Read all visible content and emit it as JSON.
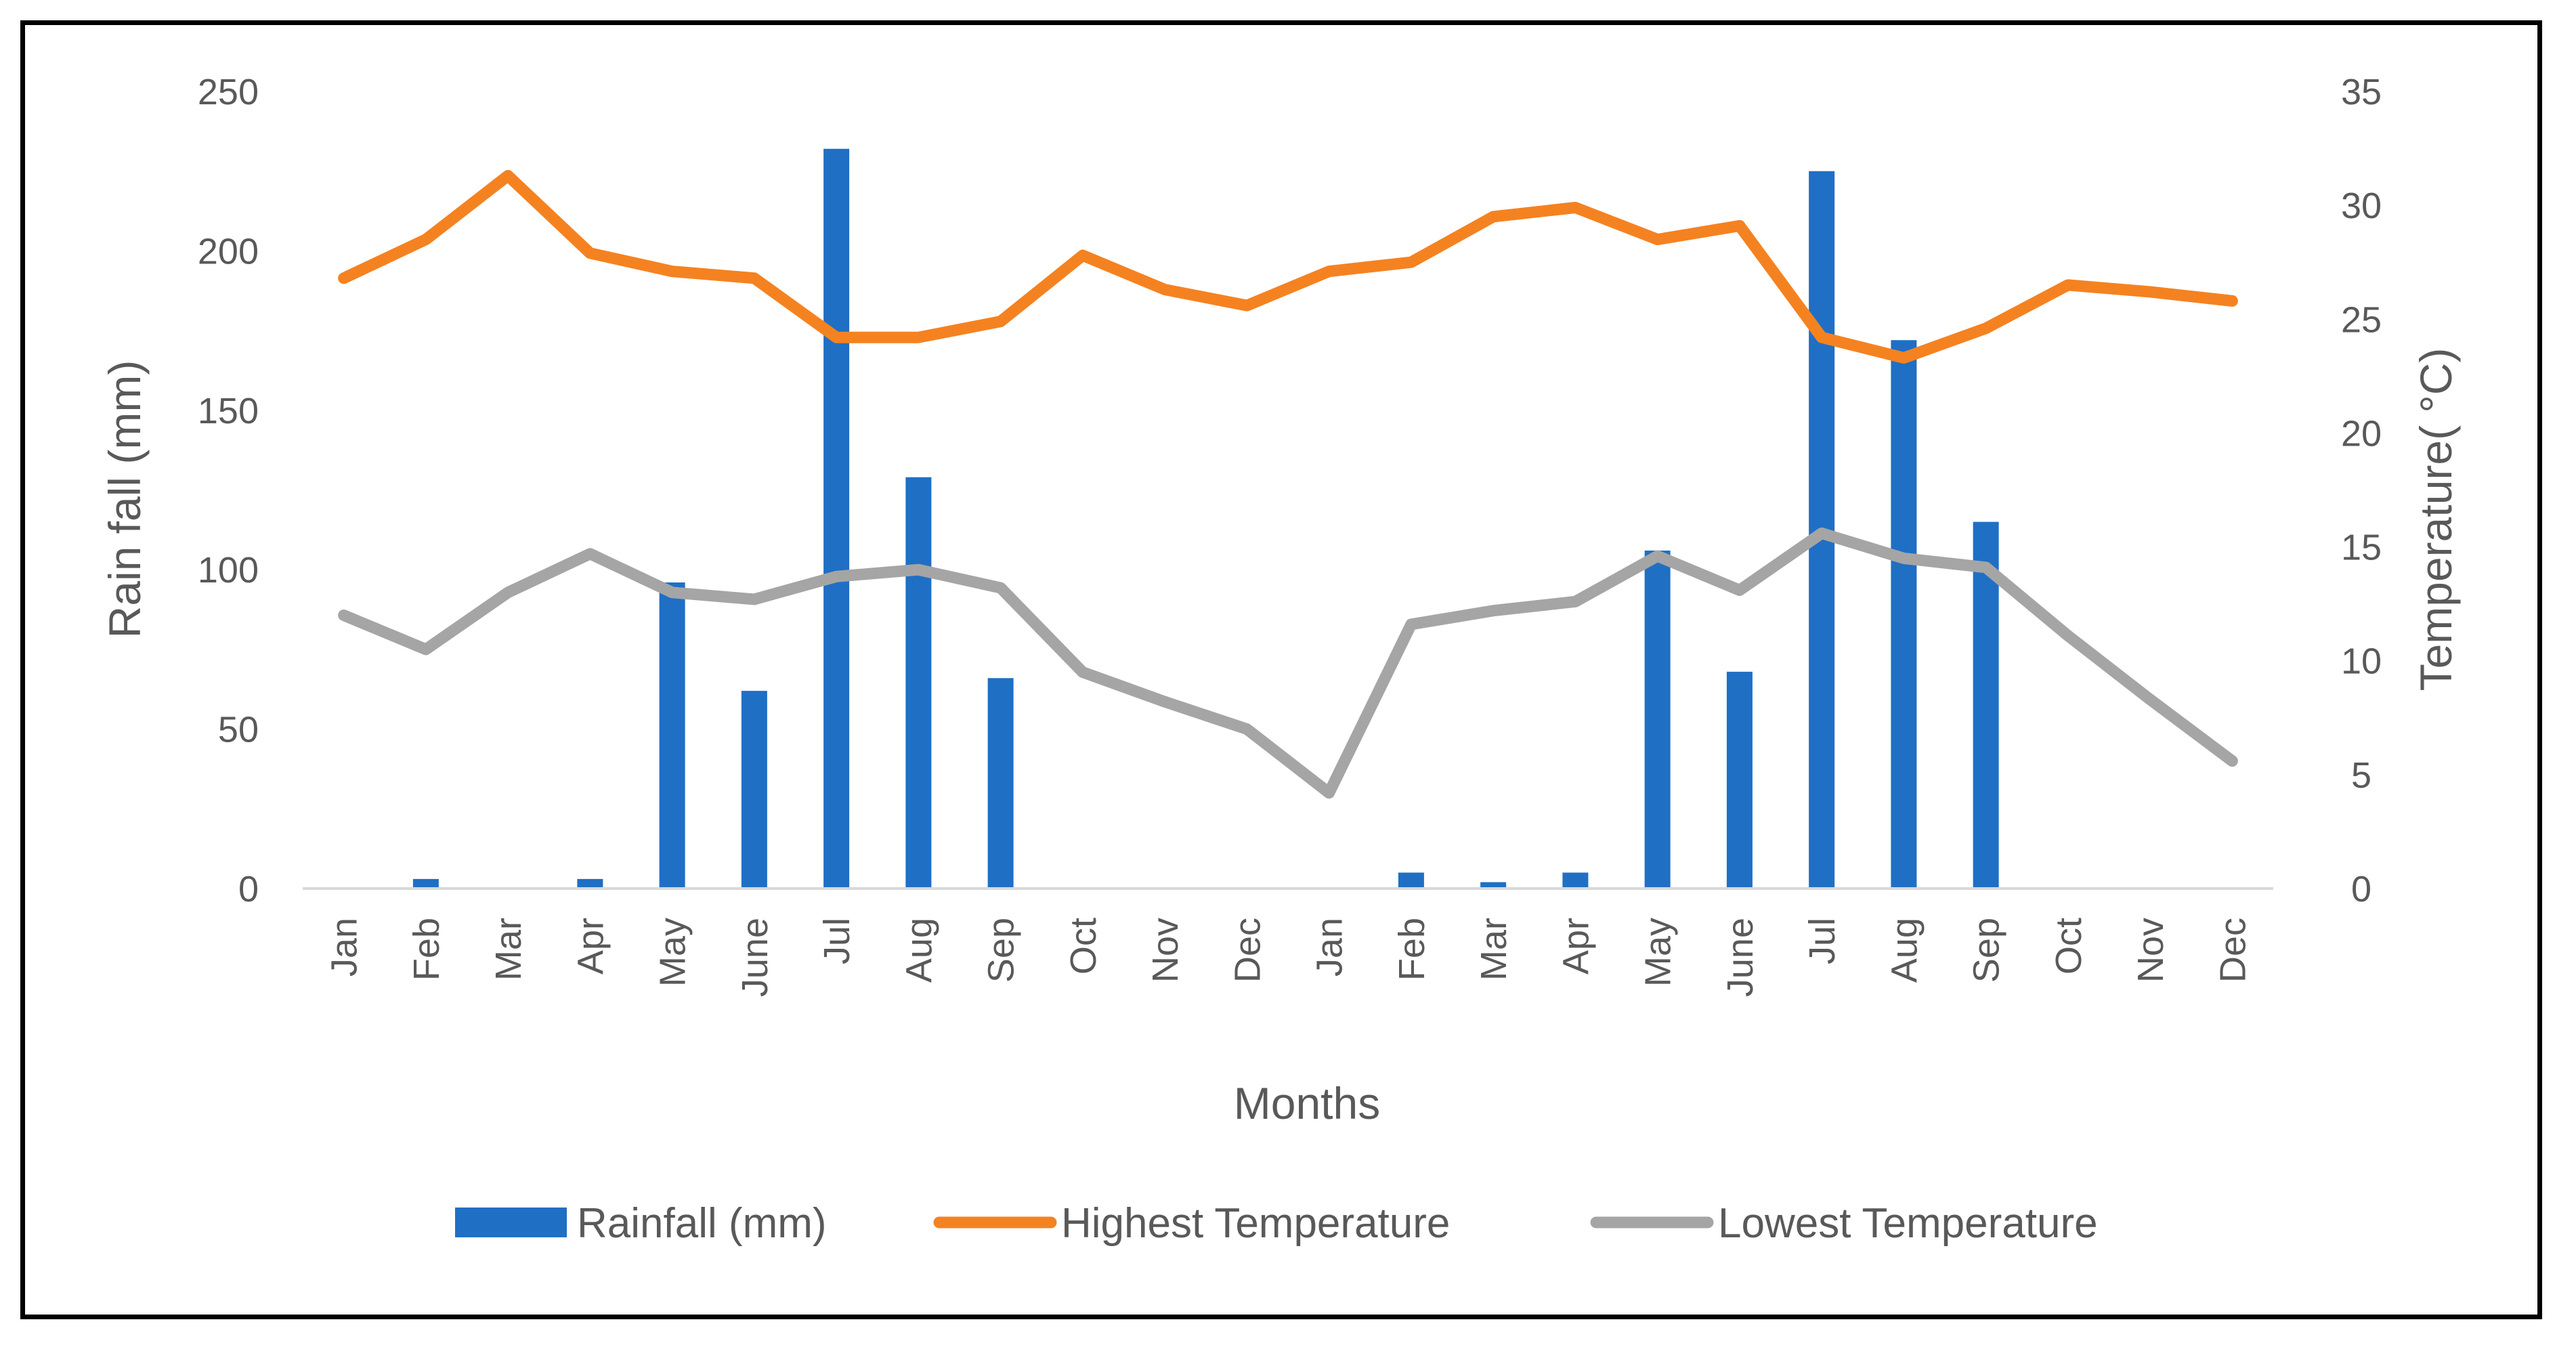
{
  "chart_data": {
    "type": "bar",
    "title": "",
    "categories": [
      "Jan",
      "Feb",
      "Mar",
      "Apr",
      "May",
      "June",
      "Jul",
      "Aug",
      "Sep",
      "Oct",
      "Nov",
      "Dec",
      "Jan",
      "Feb",
      "Mar",
      "Apr",
      "May",
      "June",
      "Jul",
      "Aug",
      "Sep",
      "Oct",
      "Nov",
      "Dec"
    ],
    "xlabel": "Months",
    "ylabel": "Rain fall (mm)",
    "y2label": "Temperature( °C)",
    "ylim": [
      0,
      250
    ],
    "y2lim": [
      0,
      35
    ],
    "yticks": [
      "0",
      "50",
      "100",
      "150",
      "200",
      "250"
    ],
    "y2ticks": [
      "0",
      "5",
      "10",
      "15",
      "20",
      "25",
      "30",
      "35"
    ],
    "grid": false,
    "legend_position": "bottom",
    "series": [
      {
        "name": "Rainfall (mm)",
        "type": "bar",
        "axis": "left",
        "color": "#1F6FC5",
        "values": [
          0,
          3,
          0,
          3,
          96,
          62,
          232,
          129,
          66,
          0,
          0,
          0,
          0,
          5,
          2,
          5,
          106,
          68,
          225,
          172,
          115,
          0,
          0,
          0
        ]
      },
      {
        "name": "Highest Temperature",
        "type": "line",
        "axis": "right",
        "color": "#F58220",
        "values": [
          26.8,
          28.5,
          31.3,
          27.9,
          27.1,
          26.8,
          24.2,
          24.2,
          24.9,
          27.8,
          26.3,
          25.6,
          27.1,
          27.5,
          29.5,
          29.9,
          28.5,
          29.1,
          24.2,
          23.3,
          24.6,
          26.5,
          26.2,
          25.8
        ]
      },
      {
        "name": "Lowest Temperature",
        "type": "line",
        "axis": "right",
        "color": "#A5A5A5",
        "values": [
          12.0,
          10.5,
          13.0,
          14.7,
          13.0,
          12.7,
          13.7,
          14.0,
          13.2,
          9.5,
          8.2,
          7.0,
          4.2,
          11.6,
          12.2,
          12.6,
          14.6,
          13.1,
          15.6,
          14.5,
          14.1,
          11.1,
          8.3,
          5.6
        ]
      }
    ]
  }
}
